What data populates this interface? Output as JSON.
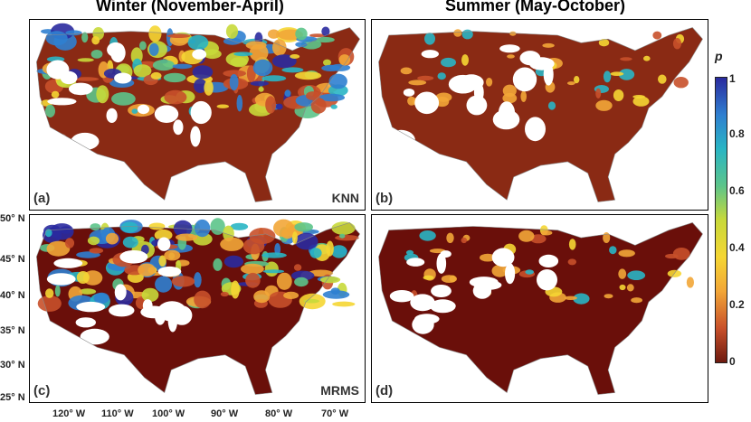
{
  "titles": {
    "left": "Winter (November-April)",
    "right": "Summer (May-October)"
  },
  "panels": [
    {
      "id": "a",
      "label": "(a)",
      "source": "KNN",
      "season": "winter"
    },
    {
      "id": "b",
      "label": "(b)",
      "source": "",
      "season": "summer"
    },
    {
      "id": "c",
      "label": "(c)",
      "source": "MRMS",
      "season": "winter"
    },
    {
      "id": "d",
      "label": "(d)",
      "source": "",
      "season": "summer"
    }
  ],
  "lat_ticks": [
    "50° N",
    "45° N",
    "40° N",
    "35° N",
    "30° N",
    "25° N"
  ],
  "lon_ticks": [
    "120° W",
    "110° W",
    "100° W",
    "90° W",
    "80° W",
    "70° W"
  ],
  "colorbar": {
    "title": "p",
    "ticks": [
      "1",
      "0.8",
      "0.6",
      "0.4",
      "0.2",
      "0"
    ],
    "colors": [
      "#2a2a9e",
      "#2f7fd0",
      "#29b5c4",
      "#5cc48a",
      "#c8d93a",
      "#f5d633",
      "#f2a637",
      "#c8502a",
      "#6d1a0f"
    ]
  }
}
